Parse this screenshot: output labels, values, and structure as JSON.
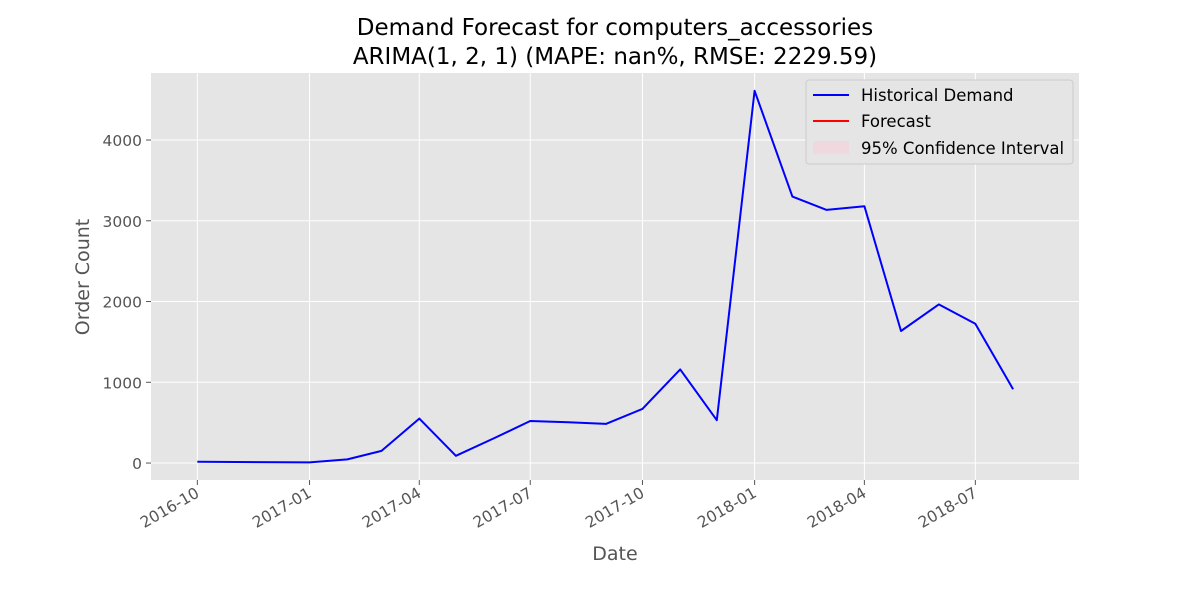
{
  "chart_data": {
    "type": "line",
    "title": "Demand Forecast for computers_accessories",
    "subtitle": "ARIMA(1, 2, 1) (MAPE: nan%, RMSE: 2229.59)",
    "xlabel": "Date",
    "ylabel": "Order Count",
    "x_ticks": [
      "2016-10",
      "2017-01",
      "2017-04",
      "2017-07",
      "2017-10",
      "2018-01",
      "2018-04",
      "2018-07"
    ],
    "y_ticks": [
      0,
      1000,
      2000,
      3000,
      4000
    ],
    "xlim": [
      "2016-08-24",
      "2018-09-24"
    ],
    "ylim": [
      -210,
      4830
    ],
    "grid": true,
    "legend_position": "top-right",
    "series": [
      {
        "name": "Historical Demand",
        "color": "#0000ff",
        "x": [
          "2016-10-01",
          "2017-01-01",
          "2017-02-01",
          "2017-03-01",
          "2017-04-01",
          "2017-05-01",
          "2017-06-01",
          "2017-07-01",
          "2017-08-01",
          "2017-09-01",
          "2017-10-01",
          "2017-11-01",
          "2017-12-01",
          "2018-01-01",
          "2018-02-01",
          "2018-03-01",
          "2018-04-01",
          "2018-05-01",
          "2018-06-01",
          "2018-07-01",
          "2018-08-01"
        ],
        "y": [
          15,
          8,
          45,
          150,
          550,
          90,
          305,
          520,
          505,
          485,
          670,
          1160,
          530,
          4610,
          3300,
          3135,
          3180,
          1635,
          1965,
          1725,
          915
        ]
      },
      {
        "name": "Forecast",
        "color": "#ff0000",
        "x": [],
        "y": []
      },
      {
        "name": "95% Confidence Interval",
        "color": "#f4d4dc",
        "x": [],
        "lower": [],
        "upper": []
      }
    ]
  }
}
